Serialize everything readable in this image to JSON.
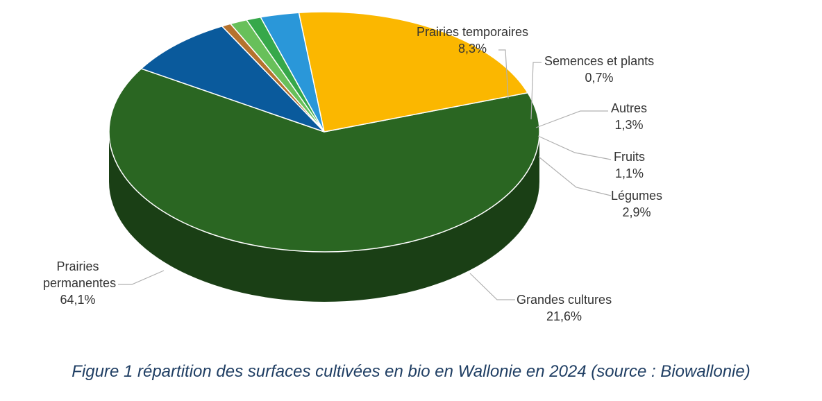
{
  "chart_data": {
    "type": "pie",
    "style": "3d-exploded-none",
    "slices": [
      {
        "label": "Prairies permanentes",
        "value": 64.1,
        "value_label": "64,1%",
        "color": "#2a6622"
      },
      {
        "label": "Prairies temporaires",
        "value": 8.3,
        "value_label": "8,3%",
        "color": "#0a5a9c"
      },
      {
        "label": "Semences et plants",
        "value": 0.7,
        "value_label": "0,7%",
        "color": "#b5722e"
      },
      {
        "label": "Autres",
        "value": 1.3,
        "value_label": "1,3%",
        "color": "#68c05a"
      },
      {
        "label": "Fruits",
        "value": 1.1,
        "value_label": "1,1%",
        "color": "#36a84a"
      },
      {
        "label": "Légumes",
        "value": 2.9,
        "value_label": "2,9%",
        "color": "#2a97d9"
      },
      {
        "label": "Grandes cultures",
        "value": 21.6,
        "value_label": "21,6%",
        "color": "#fbb700"
      }
    ]
  },
  "caption": "Figure 1 répartition des surfaces cultivées en bio en Wallonie en 2024 (source : Biowallonie)"
}
